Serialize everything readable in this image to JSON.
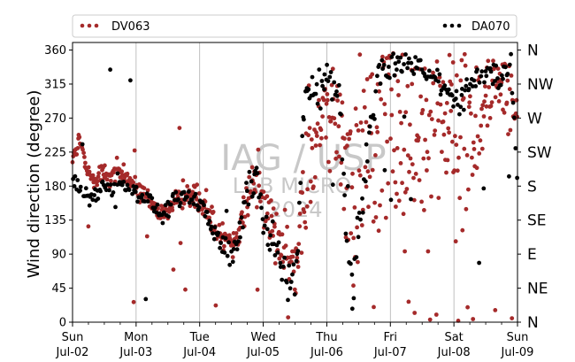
{
  "chart_data": {
    "type": "scatter",
    "ylabel": "Wind direction (degree)",
    "xlabel": "",
    "ylim": [
      0,
      370
    ],
    "y_ticks": [
      0,
      45,
      90,
      135,
      180,
      225,
      270,
      315,
      360
    ],
    "x_range_days": [
      0,
      7
    ],
    "x_ticks": [
      {
        "day": 0,
        "weekday": "Sun",
        "date": "Jul-02"
      },
      {
        "day": 1,
        "weekday": "Mon",
        "date": "Jul-03"
      },
      {
        "day": 2,
        "weekday": "Tue",
        "date": "Jul-04"
      },
      {
        "day": 3,
        "weekday": "Wed",
        "date": "Jul-05"
      },
      {
        "day": 4,
        "weekday": "Thu",
        "date": "Jul-06"
      },
      {
        "day": 5,
        "weekday": "Fri",
        "date": "Jul-07"
      },
      {
        "day": 6,
        "weekday": "Sat",
        "date": "Jul-08"
      },
      {
        "day": 7,
        "weekday": "Sun",
        "date": "Jul-09"
      }
    ],
    "compass_ticks": [
      {
        "value": 0,
        "label": "N"
      },
      {
        "value": 45,
        "label": "NE"
      },
      {
        "value": 90,
        "label": "E"
      },
      {
        "value": 135,
        "label": "SE"
      },
      {
        "value": 180,
        "label": "S"
      },
      {
        "value": 225,
        "label": "SW"
      },
      {
        "value": 270,
        "label": "W"
      },
      {
        "value": 315,
        "label": "NW"
      },
      {
        "value": 360,
        "label": "N"
      }
    ],
    "grid": "vertical",
    "legend_position": "top",
    "watermark": [
      "IAG / USP",
      "LAB MICRO",
      "2024"
    ],
    "series": [
      {
        "name": "DV063",
        "color": "#a52a2a",
        "anchors": [
          [
            0,
            215
          ],
          [
            0.1,
            240
          ],
          [
            0.25,
            190
          ],
          [
            0.5,
            195
          ],
          [
            0.75,
            200
          ],
          [
            0.95,
            180
          ],
          [
            1.2,
            160
          ],
          [
            1.4,
            140
          ],
          [
            1.6,
            160
          ],
          [
            1.8,
            170
          ],
          [
            2.0,
            165
          ],
          [
            2.15,
            140
          ],
          [
            2.3,
            120
          ],
          [
            2.5,
            100
          ],
          [
            2.6,
            110
          ],
          [
            2.75,
            170
          ],
          [
            2.9,
            200
          ],
          [
            3.0,
            150
          ],
          [
            3.15,
            130
          ],
          [
            3.35,
            90
          ],
          [
            3.5,
            70
          ],
          [
            3.65,
            180
          ],
          [
            3.85,
            260
          ],
          [
            4.0,
            270
          ],
          [
            4.2,
            270
          ],
          [
            4.4,
            150
          ],
          [
            4.7,
            250
          ],
          [
            5.0,
            250
          ],
          [
            5.3,
            260
          ],
          [
            5.6,
            270
          ],
          [
            5.9,
            270
          ],
          [
            6.2,
            260
          ],
          [
            6.5,
            290
          ],
          [
            6.7,
            320
          ],
          [
            6.9,
            300
          ],
          [
            7.0,
            270
          ]
        ],
        "spread_anchors": [
          [
            0,
            10
          ],
          [
            0.3,
            15
          ],
          [
            1.0,
            12
          ],
          [
            2.0,
            15
          ],
          [
            2.6,
            20
          ],
          [
            3.0,
            40
          ],
          [
            3.5,
            50
          ],
          [
            3.7,
            60
          ],
          [
            4.0,
            60
          ],
          [
            4.3,
            110
          ],
          [
            5.0,
            130
          ],
          [
            6.0,
            130
          ],
          [
            6.6,
            60
          ],
          [
            7.0,
            40
          ]
        ],
        "points_per_day": 95
      },
      {
        "name": "DA070",
        "color": "#000000",
        "anchors": [
          [
            0,
            190
          ],
          [
            0.25,
            162
          ],
          [
            0.5,
            180
          ],
          [
            0.75,
            185
          ],
          [
            1.0,
            170
          ],
          [
            1.2,
            160
          ],
          [
            1.4,
            140
          ],
          [
            1.6,
            160
          ],
          [
            1.8,
            165
          ],
          [
            2.0,
            160
          ],
          [
            2.15,
            130
          ],
          [
            2.3,
            105
          ],
          [
            2.5,
            90
          ],
          [
            2.6,
            100
          ],
          [
            2.75,
            170
          ],
          [
            2.9,
            200
          ],
          [
            3.0,
            125
          ],
          [
            3.15,
            110
          ],
          [
            3.35,
            70
          ],
          [
            3.5,
            40
          ],
          [
            3.65,
            300
          ],
          [
            3.85,
            300
          ],
          [
            4.0,
            330
          ],
          [
            4.2,
            300
          ],
          [
            4.4,
            40
          ],
          [
            4.8,
            330
          ],
          [
            5.1,
            340
          ],
          [
            5.4,
            340
          ],
          [
            5.6,
            330
          ],
          [
            6.0,
            290
          ],
          [
            6.2,
            300
          ],
          [
            6.5,
            345
          ],
          [
            6.7,
            320
          ],
          [
            6.9,
            330
          ],
          [
            7.0,
            200
          ]
        ],
        "spread_anchors": [
          [
            0,
            10
          ],
          [
            1.0,
            10
          ],
          [
            2.0,
            12
          ],
          [
            3.0,
            20
          ],
          [
            3.5,
            30
          ],
          [
            3.7,
            20
          ],
          [
            4.3,
            40
          ],
          [
            5.0,
            15
          ],
          [
            6.0,
            20
          ],
          [
            7.0,
            20
          ]
        ],
        "points_per_day": 55
      }
    ]
  }
}
